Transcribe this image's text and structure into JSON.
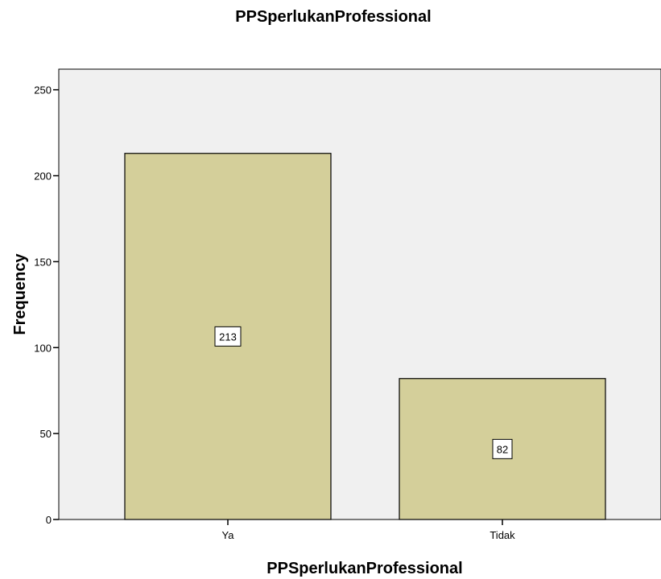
{
  "chart_data": {
    "type": "bar",
    "title": "PPSperlukanProfessional",
    "xlabel": "PPSperlukanProfessional",
    "ylabel": "Frequency",
    "categories": [
      "Ya",
      "Tidak"
    ],
    "values": [
      213,
      82
    ],
    "data_labels": [
      "213",
      "82"
    ],
    "ylim": [
      0,
      262
    ],
    "yticks": [
      0,
      50,
      100,
      150,
      200,
      250
    ],
    "grid": false,
    "legend": "none",
    "colors": {
      "bar_fill": "#d4cf9a",
      "bar_stroke": "#000000",
      "plot_background": "#f0f0f0"
    }
  }
}
